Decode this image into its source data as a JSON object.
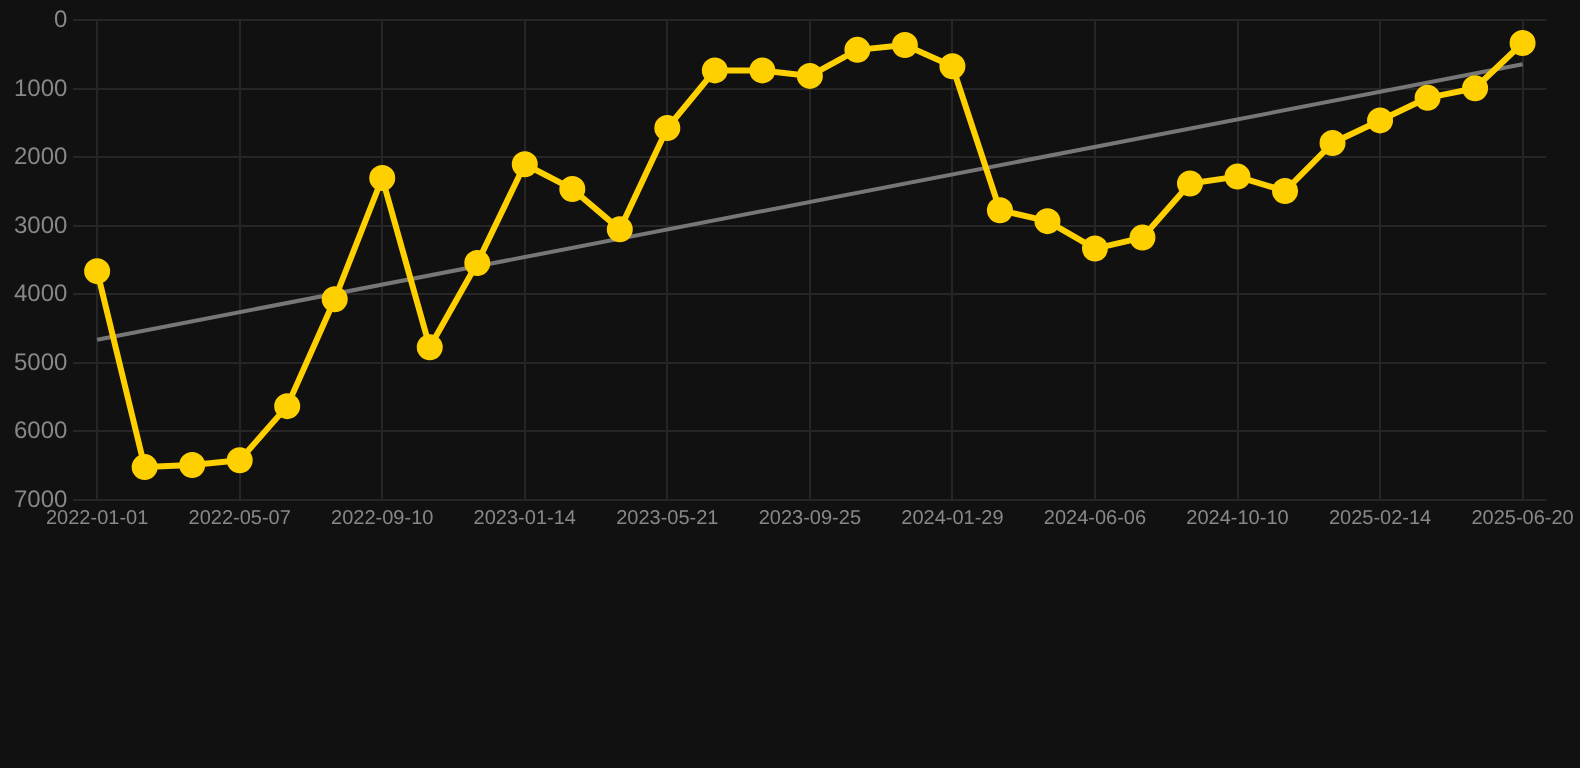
{
  "chart_data": {
    "type": "line",
    "categories": [
      "2022-01-01",
      null,
      null,
      "2022-05-07",
      null,
      null,
      "2022-09-10",
      null,
      null,
      "2023-01-14",
      null,
      null,
      "2023-05-21",
      null,
      null,
      "2023-09-25",
      null,
      null,
      "2024-01-29",
      null,
      null,
      "2024-06-06",
      null,
      null,
      "2024-10-10",
      null,
      null,
      "2025-02-14",
      null,
      null,
      "2025-06-20"
    ],
    "series": [
      {
        "color": "#ffd000",
        "marker": "circle",
        "values": [
          3660,
          6520,
          6490,
          6420,
          5630,
          4070,
          2300,
          4770,
          3540,
          2100,
          2460,
          3050,
          1570,
          730,
          730,
          810,
          430,
          360,
          670,
          2770,
          2930,
          3330,
          3170,
          2380,
          2280,
          2490,
          1790,
          1460,
          1130,
          990,
          330
        ]
      },
      {
        "color": "#777777",
        "marker": "none",
        "values": [
          4660,
          null,
          null,
          null,
          null,
          null,
          null,
          null,
          null,
          null,
          null,
          null,
          null,
          null,
          null,
          null,
          null,
          null,
          null,
          null,
          null,
          null,
          null,
          null,
          null,
          null,
          null,
          null,
          null,
          null,
          640
        ]
      }
    ],
    "ylim": [
      7000,
      0
    ],
    "yticks": [
      0,
      1000,
      2000,
      3000,
      4000,
      5000,
      6000,
      7000
    ],
    "grid": true,
    "legend": false
  }
}
